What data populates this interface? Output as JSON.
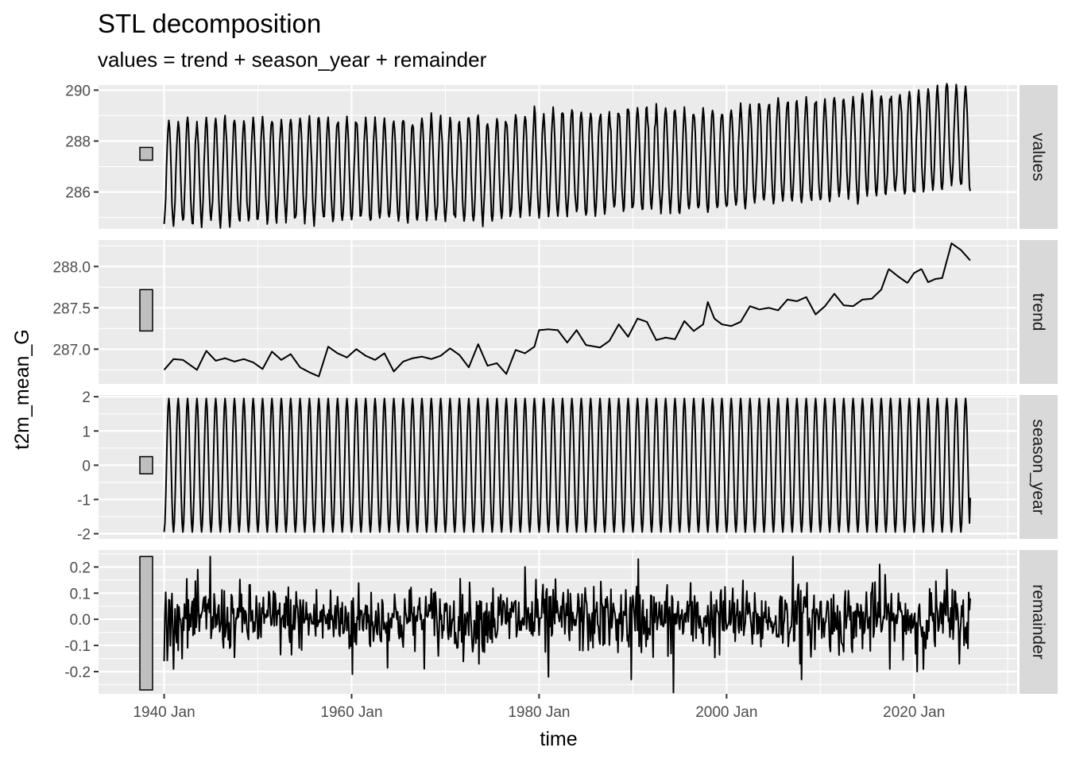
{
  "chart_data": {
    "type": "line",
    "title": "STL decomposition",
    "subtitle": "values = trend + season_year + remainder",
    "xlabel": "time",
    "ylabel": "t2m_mean_G",
    "x_ticks": [
      "1940 Jan",
      "1960 Jan",
      "1980 Jan",
      "2000 Jan",
      "2020 Jan"
    ],
    "x_tick_years": [
      1940,
      1960,
      1980,
      2000,
      2020
    ],
    "x_range": [
      1933.0,
      2031.0
    ],
    "x_start": "1940 Jan",
    "x_end": "2026 Feb",
    "frequency": "monthly",
    "grid": true,
    "panels": [
      {
        "name": "values",
        "ylim": [
          284.55,
          290.2
        ],
        "y_ticks": [
          286,
          288,
          290
        ],
        "y_tick_labels": [
          "286",
          "288",
          "290"
        ],
        "scale_bar": [
          287.25,
          287.75
        ],
        "trend_anchors": {
          "years": [
            1940,
            1950,
            1960,
            1970,
            1975,
            1980,
            1985,
            1990,
            1995,
            2000,
            2005,
            2010,
            2015,
            2020,
            2024,
            2026
          ],
          "values": [
            286.78,
            286.85,
            286.88,
            286.9,
            286.85,
            287.15,
            287.1,
            287.3,
            287.2,
            287.3,
            287.55,
            287.6,
            287.85,
            287.95,
            288.25,
            288.05
          ]
        },
        "seasonal_amplitude": 2.0,
        "series_color": "#000000"
      },
      {
        "name": "trend",
        "ylim": [
          286.58,
          288.32
        ],
        "y_ticks": [
          287.0,
          287.5,
          288.0
        ],
        "y_tick_labels": [
          "287.0",
          "287.5",
          "288.0"
        ],
        "scale_bar": [
          287.22,
          287.72
        ],
        "points": [
          [
            1940.0,
            286.75
          ],
          [
            1941.0,
            286.88
          ],
          [
            1942.0,
            286.87
          ],
          [
            1943.5,
            286.75
          ],
          [
            1944.5,
            286.98
          ],
          [
            1945.5,
            286.86
          ],
          [
            1946.5,
            286.89
          ],
          [
            1947.5,
            286.85
          ],
          [
            1948.5,
            286.88
          ],
          [
            1949.5,
            286.84
          ],
          [
            1950.5,
            286.76
          ],
          [
            1951.5,
            286.97
          ],
          [
            1952.5,
            286.87
          ],
          [
            1953.5,
            286.94
          ],
          [
            1954.5,
            286.78
          ],
          [
            1955.5,
            286.72
          ],
          [
            1956.5,
            286.67
          ],
          [
            1957.5,
            287.03
          ],
          [
            1958.5,
            286.95
          ],
          [
            1959.5,
            286.9
          ],
          [
            1960.5,
            287.0
          ],
          [
            1961.5,
            286.92
          ],
          [
            1962.5,
            286.87
          ],
          [
            1963.5,
            286.95
          ],
          [
            1964.5,
            286.73
          ],
          [
            1965.5,
            286.85
          ],
          [
            1966.5,
            286.89
          ],
          [
            1967.5,
            286.91
          ],
          [
            1968.5,
            286.88
          ],
          [
            1969.5,
            286.92
          ],
          [
            1970.5,
            287.01
          ],
          [
            1971.5,
            286.93
          ],
          [
            1972.5,
            286.78
          ],
          [
            1973.5,
            287.06
          ],
          [
            1974.5,
            286.8
          ],
          [
            1975.5,
            286.83
          ],
          [
            1976.5,
            286.7
          ],
          [
            1977.5,
            286.99
          ],
          [
            1978.5,
            286.95
          ],
          [
            1979.5,
            287.03
          ],
          [
            1980.0,
            287.23
          ],
          [
            1981.0,
            287.24
          ],
          [
            1982.0,
            287.23
          ],
          [
            1983.0,
            287.08
          ],
          [
            1984.0,
            287.23
          ],
          [
            1985.0,
            287.05
          ],
          [
            1986.5,
            287.02
          ],
          [
            1987.5,
            287.1
          ],
          [
            1988.5,
            287.3
          ],
          [
            1989.5,
            287.15
          ],
          [
            1990.5,
            287.37
          ],
          [
            1991.5,
            287.33
          ],
          [
            1992.5,
            287.11
          ],
          [
            1993.5,
            287.14
          ],
          [
            1994.5,
            287.12
          ],
          [
            1995.5,
            287.34
          ],
          [
            1996.5,
            287.22
          ],
          [
            1997.5,
            287.3
          ],
          [
            1998.0,
            287.57
          ],
          [
            1998.7,
            287.37
          ],
          [
            1999.5,
            287.3
          ],
          [
            2000.5,
            287.28
          ],
          [
            2001.5,
            287.33
          ],
          [
            2002.5,
            287.52
          ],
          [
            2003.5,
            287.48
          ],
          [
            2004.5,
            287.5
          ],
          [
            2005.5,
            287.47
          ],
          [
            2006.5,
            287.6
          ],
          [
            2007.5,
            287.58
          ],
          [
            2008.5,
            287.63
          ],
          [
            2009.5,
            287.42
          ],
          [
            2010.5,
            287.52
          ],
          [
            2011.5,
            287.67
          ],
          [
            2012.5,
            287.53
          ],
          [
            2013.5,
            287.52
          ],
          [
            2014.5,
            287.6
          ],
          [
            2015.5,
            287.61
          ],
          [
            2016.5,
            287.72
          ],
          [
            2017.3,
            287.97
          ],
          [
            2018.3,
            287.88
          ],
          [
            2019.3,
            287.8
          ],
          [
            2020.0,
            287.92
          ],
          [
            2020.8,
            287.97
          ],
          [
            2021.5,
            287.81
          ],
          [
            2022.3,
            287.85
          ],
          [
            2023.0,
            287.86
          ],
          [
            2024.0,
            288.28
          ],
          [
            2025.0,
            288.2
          ],
          [
            2026.1,
            288.06
          ]
        ],
        "series_color": "#000000"
      },
      {
        "name": "season_year",
        "ylim": [
          -2.15,
          2.05
        ],
        "y_ticks": [
          -2,
          -1,
          0,
          1,
          2
        ],
        "y_tick_labels": [
          "-2",
          "-1",
          "0",
          "1",
          "2"
        ],
        "scale_bar": [
          -0.25,
          0.25
        ],
        "amplitude": 1.95,
        "end_value": -0.95,
        "series_color": "#000000"
      },
      {
        "name": "remainder",
        "ylim": [
          -0.285,
          0.265
        ],
        "y_ticks": [
          -0.2,
          -0.1,
          0.0,
          0.1,
          0.2
        ],
        "y_tick_labels": [
          "-0.2",
          "-0.1",
          "0.0",
          "0.1",
          "0.2"
        ],
        "scale_bar": [
          -0.27,
          0.24
        ],
        "noise_sd": 0.065,
        "notable_points": [
          [
            1940.0,
            -0.16
          ],
          [
            1944.9,
            0.24
          ],
          [
            1960.1,
            -0.21
          ],
          [
            1978.5,
            0.2
          ],
          [
            1981.0,
            -0.22
          ],
          [
            1989.8,
            -0.23
          ],
          [
            1990.6,
            0.23
          ],
          [
            1994.3,
            -0.28
          ],
          [
            2007.1,
            0.24
          ],
          [
            2008.0,
            -0.23
          ],
          [
            2016.3,
            0.21
          ],
          [
            2020.3,
            -0.2
          ],
          [
            2023.5,
            0.19
          ],
          [
            2026.1,
            0.08
          ]
        ],
        "series_color": "#000000"
      }
    ]
  }
}
